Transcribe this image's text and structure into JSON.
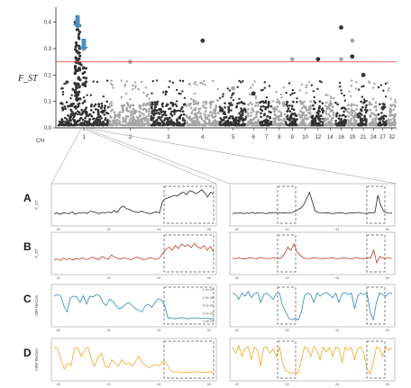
{
  "chart_data": [
    {
      "type": "scatter",
      "subtype": "manhattan",
      "ylabel": "F_ST",
      "ylim": [
        0,
        0.45
      ],
      "yticks": [
        "0.0",
        "0.1",
        "0.2",
        "0.3",
        "0.4"
      ],
      "xlabel_prefix": "Chr",
      "chromosome_labels": [
        "1",
        "2",
        "3",
        "4",
        "5",
        "6",
        "7",
        "8",
        "9",
        "10",
        "12",
        "14",
        "16",
        "19",
        "21",
        "24",
        "27",
        "32"
      ],
      "threshold": 0.25,
      "threshold_color": "#d9534f",
      "arrow_color": "#4a90c2",
      "series_colors": [
        "#333333",
        "#a6a6a6"
      ],
      "peaks": [
        {
          "chromosome": "1",
          "max_fst": 0.4
        },
        {
          "chromosome": "2",
          "max_fst": 0.25
        },
        {
          "chromosome": "5",
          "max_fst": 0.22
        },
        {
          "chromosome": "11",
          "max_fst": 0.26
        },
        {
          "chromosome": "14",
          "max_fst": 0.26
        },
        {
          "chromosome": "16",
          "max_fst": 0.38
        },
        {
          "chromosome": "17",
          "max_fst": 0.33
        },
        {
          "chromosome": "18",
          "max_fst": 0.27
        }
      ]
    },
    {
      "type": "line",
      "panel": "A",
      "ylabel": "F_ST",
      "color": "#222222",
      "x_ticks_left": [
        "62",
        "63",
        "64",
        "65"
      ],
      "x_ticks_right": [
        "62",
        "63",
        "64",
        "65"
      ],
      "left_values": [
        0.22,
        0.24,
        0.2,
        0.25,
        0.23,
        0.22,
        0.28,
        0.2,
        0.24,
        0.23,
        0.26,
        0.22,
        0.3,
        0.28,
        0.25,
        0.22,
        0.26,
        0.24,
        0.27,
        0.25,
        0.32,
        0.26,
        0.4,
        0.46,
        0.38,
        0.35,
        0.3,
        0.28,
        0.25,
        0.3,
        0.26,
        0.24,
        0.22,
        0.25,
        0.28,
        0.24,
        0.6,
        0.7,
        0.72,
        0.76,
        0.8,
        0.78,
        0.86,
        0.9,
        0.82,
        0.95,
        0.92,
        0.85,
        0.9,
        0.98,
        0.88,
        0.75,
        0.9,
        0.85
      ],
      "right_values": [
        0.22,
        0.24,
        0.23,
        0.25,
        0.22,
        0.24,
        0.23,
        0.26,
        0.22,
        0.25,
        0.24,
        0.23,
        0.22,
        0.25,
        0.24,
        0.26,
        0.23,
        0.24,
        0.25,
        0.23,
        0.24,
        0.26,
        0.3,
        0.35,
        0.4,
        0.5,
        0.7,
        0.9,
        0.6,
        0.3,
        0.26,
        0.24,
        0.23,
        0.25,
        0.24,
        0.22,
        0.23,
        0.24,
        0.25,
        0.23,
        0.22,
        0.24,
        0.25,
        0.23,
        0.26,
        0.24,
        0.23,
        0.22,
        0.25,
        0.24,
        0.26,
        0.8,
        0.5,
        0.3,
        0.25,
        0.23,
        0.24
      ]
    },
    {
      "type": "line",
      "panel": "B",
      "ylabel": "F_ST",
      "color": "#c0392b",
      "x_ticks_left": [
        "62",
        "63",
        "64",
        "65"
      ],
      "x_ticks_right": [
        "62",
        "63",
        "64",
        "65"
      ],
      "left_values": [
        0.3,
        0.32,
        0.28,
        0.35,
        0.3,
        0.33,
        0.29,
        0.34,
        0.31,
        0.36,
        0.3,
        0.33,
        0.38,
        0.34,
        0.3,
        0.4,
        0.35,
        0.32,
        0.45,
        0.38,
        0.34,
        0.32,
        0.36,
        0.33,
        0.3,
        0.34,
        0.38,
        0.35,
        0.3,
        0.32,
        0.36,
        0.34,
        0.31,
        0.35,
        0.5,
        0.62,
        0.7,
        0.6,
        0.75,
        0.65,
        0.8,
        0.72,
        0.78,
        0.68,
        0.82,
        0.7,
        0.66,
        0.75,
        0.6,
        0.72,
        0.55
      ],
      "right_values": [
        0.35,
        0.33,
        0.36,
        0.34,
        0.32,
        0.35,
        0.37,
        0.34,
        0.33,
        0.36,
        0.35,
        0.34,
        0.33,
        0.36,
        0.35,
        0.34,
        0.37,
        0.5,
        0.7,
        0.6,
        0.8,
        0.55,
        0.45,
        0.36,
        0.34,
        0.33,
        0.35,
        0.36,
        0.34,
        0.33,
        0.35,
        0.34,
        0.36,
        0.35,
        0.33,
        0.34,
        0.36,
        0.35,
        0.34,
        0.33,
        0.36,
        0.35,
        0.34,
        0.33,
        0.36,
        0.35,
        0.6,
        0.2,
        0.4,
        0.35,
        0.34,
        0.36,
        0.33
      ]
    },
    {
      "type": "line",
      "panel": "C",
      "ylabel": "cMP ReCom",
      "color": "#2e86c1",
      "x_ticks_left": [
        "62",
        "63",
        "64",
        "65"
      ],
      "x_ticks_right": [
        "62",
        "63",
        "64",
        "65"
      ],
      "yticks": [
        "1.2e-08",
        "1.0e-08",
        "8.0e-09",
        "5.0e-09",
        "3.0e-09"
      ],
      "left_values": [
        0.8,
        0.85,
        0.82,
        0.5,
        0.3,
        0.75,
        0.8,
        0.78,
        0.6,
        0.82,
        0.55,
        0.8,
        0.78,
        0.85,
        0.82,
        0.6,
        0.5,
        0.7,
        0.65,
        0.5,
        0.4,
        0.45,
        0.55,
        0.6,
        0.5,
        0.4,
        0.35,
        0.3,
        0.5,
        0.55,
        0.45,
        0.6,
        0.72,
        0.68,
        0.5,
        0.1,
        0.12,
        0.08,
        0.1,
        0.12,
        0.1,
        0.08,
        0.11,
        0.1,
        0.12,
        0.09,
        0.1,
        0.11,
        0.08,
        0.1
      ],
      "right_values": [
        0.9,
        0.85,
        0.7,
        0.9,
        0.8,
        0.95,
        0.75,
        0.88,
        0.92,
        0.6,
        0.85,
        0.9,
        0.8,
        0.7,
        0.88,
        0.9,
        0.5,
        0.3,
        0.1,
        0.05,
        0.1,
        0.05,
        0.3,
        0.8,
        0.9,
        0.85,
        0.6,
        0.9,
        0.8,
        0.88,
        0.92,
        0.85,
        0.75,
        0.9,
        0.6,
        0.88,
        0.92,
        0.85,
        0.9,
        0.4,
        0.8,
        0.9,
        0.85,
        0.9,
        0.3,
        0.05,
        0.6,
        0.9,
        0.85,
        0.8,
        0.9,
        0.88
      ]
    },
    {
      "type": "line",
      "panel": "D",
      "ylabel": "mRP ReCom",
      "color": "#f5a623",
      "x_ticks_left": [
        "62",
        "63",
        "64",
        "65"
      ],
      "x_ticks_right": [
        "62",
        "63",
        "64",
        "65"
      ],
      "left_values": [
        0.9,
        0.85,
        0.5,
        0.2,
        0.4,
        0.3,
        0.85,
        0.88,
        0.6,
        0.8,
        0.9,
        0.5,
        0.3,
        0.6,
        0.7,
        0.3,
        0.25,
        0.5,
        0.4,
        0.3,
        0.5,
        0.35,
        0.4,
        0.3,
        0.45,
        0.6,
        0.4,
        0.3,
        0.25,
        0.3,
        0.35,
        0.3,
        0.45,
        0.4,
        0.2,
        0.1,
        0.12,
        0.1,
        0.08,
        0.11,
        0.1,
        0.12,
        0.09,
        0.1,
        0.11,
        0.1,
        0.12,
        0.1
      ],
      "right_values": [
        0.9,
        0.7,
        0.95,
        0.6,
        0.85,
        0.92,
        0.5,
        0.9,
        0.8,
        0.3,
        0.88,
        0.9,
        0.7,
        0.85,
        0.6,
        0.9,
        0.4,
        0.15,
        0.1,
        0.05,
        0.12,
        0.08,
        0.5,
        0.9,
        0.85,
        0.6,
        0.92,
        0.8,
        0.5,
        0.9,
        0.75,
        0.88,
        0.6,
        0.9,
        0.85,
        0.4,
        0.9,
        0.8,
        0.88,
        0.5,
        0.85,
        0.9,
        0.7,
        0.2,
        0.05,
        0.4,
        0.9,
        0.85,
        0.6,
        0.9,
        0.8,
        0.88
      ]
    }
  ]
}
